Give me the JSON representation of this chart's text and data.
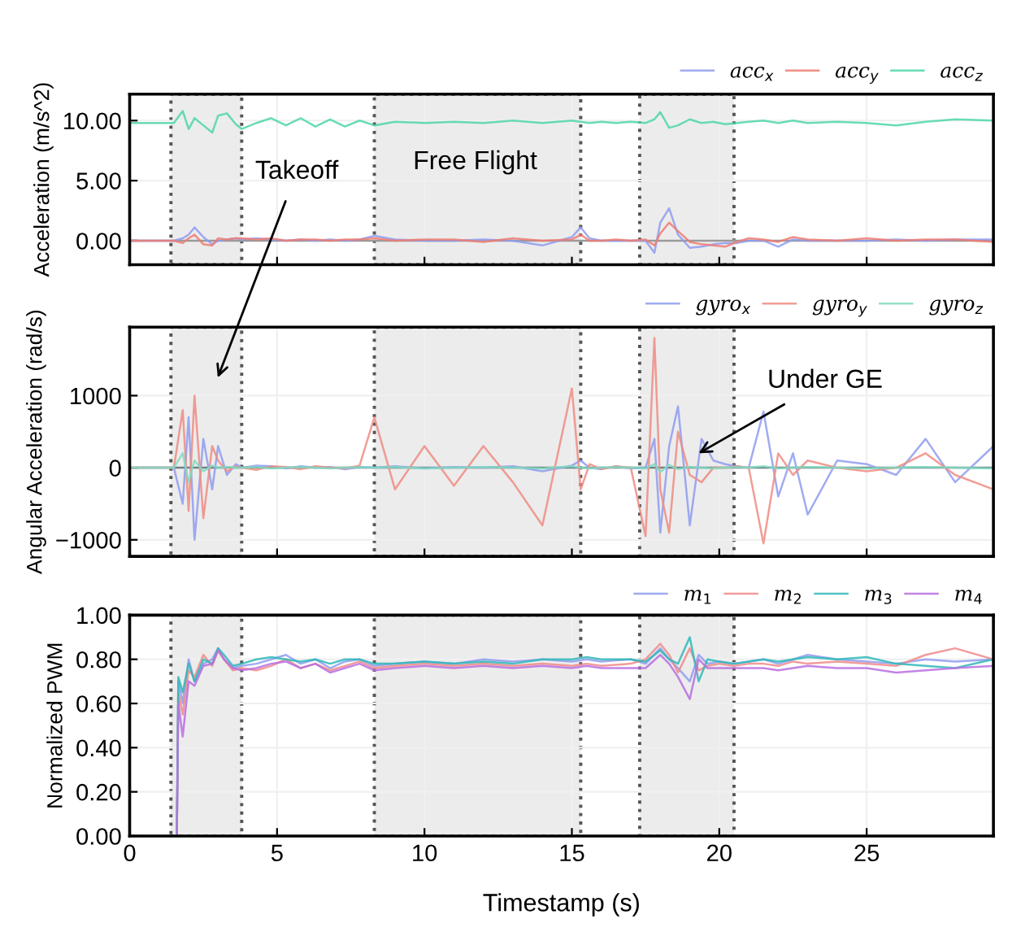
{
  "chart_data": [
    {
      "type": "line",
      "ylabel": "Acceleration (m/s^2)",
      "legend": "top right",
      "grid": true,
      "tick_labels": "y",
      "xlim": [
        0,
        29.3
      ],
      "xticks": [
        0,
        5,
        10,
        15,
        20,
        25
      ],
      "ylim": [
        -2,
        12.2
      ],
      "yticks": [
        {
          "value": 0,
          "label": "0.00"
        },
        {
          "value": 5,
          "label": "5.00"
        },
        {
          "value": 10,
          "label": "10.00"
        }
      ],
      "ref_lines": [
        {
          "axis": "y",
          "value": 0,
          "label": null,
          "color": "#9a9a9a"
        }
      ],
      "bands": [
        {
          "axis": "x",
          "from": 1.4,
          "to": 3.8,
          "label": null,
          "color": "#ececec"
        },
        {
          "axis": "x",
          "from": 8.3,
          "to": 15.3,
          "label": null,
          "color": "#ececec"
        },
        {
          "axis": "x",
          "from": 17.3,
          "to": 20.5,
          "label": null,
          "color": "#ececec"
        }
      ],
      "annotations": [
        "Free Flight"
      ],
      "x": [
        0,
        1.5,
        1.8,
        2.0,
        2.2,
        2.5,
        2.8,
        3.0,
        3.3,
        3.6,
        3.8,
        4.3,
        4.8,
        5.3,
        5.8,
        6.3,
        6.8,
        7.3,
        7.8,
        8.3,
        9,
        10,
        11,
        12,
        13,
        14,
        15,
        15.3,
        15.6,
        16,
        16.5,
        17,
        17.5,
        17.8,
        18,
        18.3,
        18.6,
        19,
        19.4,
        19.8,
        20.2,
        20.6,
        21,
        21.5,
        22,
        22.5,
        23,
        24,
        25,
        26,
        27,
        28,
        29.3
      ],
      "series": [
        {
          "name": "acc$_{x}$",
          "color": "#8f9cf0",
          "values": [
            0,
            0,
            0.2,
            0.5,
            1.1,
            0.3,
            -0.3,
            0.0,
            0.1,
            0.2,
            0.1,
            0.2,
            0.1,
            0.0,
            0.1,
            0.0,
            0.1,
            0.0,
            0.1,
            0.4,
            0.1,
            0.0,
            0.0,
            0.1,
            0.0,
            -0.4,
            0.3,
            1.1,
            0.2,
            0.0,
            0.0,
            0.0,
            0.0,
            -1.0,
            1.5,
            2.7,
            0.5,
            -0.6,
            -0.5,
            -0.3,
            -0.2,
            -0.2,
            0.0,
            0.0,
            -0.5,
            0.1,
            0.0,
            0.0,
            0.0,
            0.1,
            0.0,
            0.1,
            0.1
          ]
        },
        {
          "name": "acc$_{y}$",
          "color": "#ee7d72",
          "values": [
            0,
            0,
            -0.2,
            0.2,
            0.5,
            -0.3,
            -0.4,
            0.2,
            0.1,
            0.2,
            0.2,
            0.1,
            0.2,
            0.0,
            0.1,
            0.1,
            0.0,
            0.1,
            0.1,
            0.2,
            0.0,
            0.1,
            0.1,
            -0.1,
            0.2,
            0.0,
            0.1,
            0.5,
            0.0,
            0.0,
            0.1,
            0.0,
            0.1,
            -0.4,
            0.6,
            1.5,
            0.8,
            -0.1,
            -0.3,
            -0.4,
            -0.5,
            -0.1,
            0.2,
            0.1,
            -0.1,
            0.3,
            0.1,
            0.0,
            0.2,
            0.0,
            0.1,
            0.1,
            -0.1
          ]
        },
        {
          "name": "acc$_{z}$",
          "color": "#4fd6a8",
          "values": [
            9.8,
            9.8,
            10.8,
            9.3,
            10.2,
            9.6,
            9.0,
            10.4,
            10.6,
            9.7,
            9.3,
            9.8,
            10.2,
            9.6,
            10.2,
            9.5,
            10.1,
            9.5,
            10.0,
            9.6,
            9.9,
            9.8,
            9.9,
            9.8,
            10.0,
            9.8,
            10.0,
            9.9,
            9.8,
            9.9,
            9.8,
            9.9,
            9.8,
            10.1,
            10.7,
            9.4,
            9.6,
            10.1,
            9.8,
            9.9,
            9.7,
            9.8,
            9.9,
            10.0,
            9.8,
            10.0,
            9.8,
            9.9,
            9.8,
            9.6,
            9.9,
            10.1,
            10.0
          ]
        }
      ]
    },
    {
      "type": "line",
      "ylabel": "Angular Acceleration (rad/s)",
      "legend": "top right",
      "grid": true,
      "tick_labels": "y",
      "xlim": [
        0,
        29.3
      ],
      "xticks": [
        0,
        5,
        10,
        15,
        20,
        25
      ],
      "ylim": [
        -1230,
        1950
      ],
      "yticks": [
        {
          "value": -1000,
          "label": "−1000"
        },
        0,
        1000
      ],
      "ref_lines": [
        {
          "axis": "y",
          "value": 0,
          "label": null,
          "color": "#6f7f86"
        }
      ],
      "bands": [
        {
          "axis": "x",
          "from": 1.4,
          "to": 3.8,
          "label": null,
          "color": "#ececec"
        },
        {
          "axis": "x",
          "from": 8.3,
          "to": 15.3,
          "label": null,
          "color": "#ececec"
        },
        {
          "axis": "x",
          "from": 17.3,
          "to": 20.5,
          "label": null,
          "color": "#ececec"
        }
      ],
      "annotations": [
        "Takeoff",
        {
          "text": "Under GE",
          "x": 19.3,
          "y": 200
        }
      ],
      "x": [
        0,
        1.5,
        1.8,
        2.0,
        2.2,
        2.5,
        2.8,
        3.0,
        3.3,
        3.6,
        3.8,
        4.3,
        4.8,
        5.3,
        5.8,
        6.3,
        6.8,
        7.3,
        7.8,
        8.3,
        9,
        10,
        11,
        12,
        13,
        14,
        15,
        15.3,
        15.6,
        16,
        16.5,
        17,
        17.5,
        17.8,
        18,
        18.3,
        18.6,
        19,
        19.4,
        19.8,
        20.2,
        20.6,
        21,
        21.5,
        22,
        22.5,
        23,
        24,
        25,
        26,
        27,
        28,
        29.3
      ],
      "series": [
        {
          "name": "gyro$_{x}$",
          "color": "#8f9cf0",
          "values": [
            0,
            0,
            -500,
            700,
            -1000,
            400,
            -300,
            300,
            -100,
            50,
            0,
            30,
            20,
            -10,
            20,
            0,
            10,
            -20,
            10,
            0,
            20,
            -10,
            10,
            0,
            20,
            -50,
            30,
            100,
            0,
            -20,
            20,
            -10,
            0,
            400,
            -900,
            300,
            850,
            -800,
            400,
            100,
            50,
            20,
            0,
            780,
            -400,
            200,
            -650,
            100,
            50,
            -100,
            400,
            -200,
            300
          ]
        },
        {
          "name": "gyro$_{y}$",
          "color": "#ee8c82",
          "values": [
            0,
            0,
            800,
            -600,
            1000,
            -700,
            300,
            100,
            -50,
            20,
            0,
            -30,
            20,
            10,
            -20,
            20,
            0,
            -10,
            30,
            700,
            -300,
            300,
            -250,
            300,
            -200,
            -800,
            1100,
            -300,
            50,
            -20,
            20,
            0,
            -950,
            1800,
            -300,
            -900,
            500,
            -100,
            -200,
            0,
            0,
            20,
            0,
            -1050,
            200,
            -100,
            100,
            0,
            -50,
            0,
            200,
            -100,
            -300
          ]
        },
        {
          "name": "gyro$_{z}$",
          "color": "#7fdcc0",
          "values": [
            0,
            0,
            200,
            -200,
            100,
            -50,
            30,
            0,
            10,
            0,
            0,
            10,
            -10,
            0,
            10,
            0,
            -10,
            0,
            10,
            0,
            10,
            -10,
            0,
            10,
            0,
            -10,
            20,
            0,
            -10,
            0,
            10,
            0,
            -10,
            50,
            -60,
            40,
            -20,
            10,
            0,
            -10,
            0,
            10,
            0,
            20,
            -10,
            0,
            10,
            0,
            -10,
            0,
            10,
            0,
            -10
          ]
        }
      ]
    },
    {
      "type": "line",
      "ylabel": "Normalized PWM",
      "xlabel": "Timestamp (s)",
      "legend": "top right",
      "grid": true,
      "xlim": [
        0,
        29.3
      ],
      "xticks": [
        0,
        5,
        10,
        15,
        20,
        25
      ],
      "ylim": [
        0,
        1
      ],
      "yticks": [
        {
          "value": 0,
          "label": "0.00"
        },
        {
          "value": 0.2,
          "label": "0.20"
        },
        {
          "value": 0.4,
          "label": "0.40"
        },
        {
          "value": 0.6,
          "label": "0.60"
        },
        {
          "value": 0.8,
          "label": "0.80"
        },
        {
          "value": 1,
          "label": "1.00"
        }
      ],
      "bands": [
        {
          "axis": "x",
          "from": 1.4,
          "to": 3.8,
          "label": null,
          "color": "#ececec"
        },
        {
          "axis": "x",
          "from": 8.3,
          "to": 15.3,
          "label": null,
          "color": "#ececec"
        },
        {
          "axis": "x",
          "from": 17.3,
          "to": 20.5,
          "label": null,
          "color": "#ececec"
        }
      ],
      "x": [
        1.6,
        1.65,
        1.8,
        2.0,
        2.2,
        2.5,
        2.8,
        3.0,
        3.2,
        3.5,
        3.8,
        4.3,
        4.8,
        5.3,
        5.8,
        6.3,
        6.8,
        7.3,
        7.8,
        8.3,
        9,
        10,
        11,
        12,
        13,
        14,
        15,
        15.5,
        16,
        17,
        17.5,
        18,
        18.3,
        18.6,
        19,
        19.3,
        19.6,
        20,
        20.5,
        21,
        21.5,
        22,
        22.5,
        23,
        24,
        25,
        26,
        27,
        28,
        29.3
      ],
      "series": [
        {
          "name": "m$_{1}$",
          "color": "#8f9cf0",
          "values": [
            0.0,
            0.7,
            0.6,
            0.8,
            0.7,
            0.78,
            0.8,
            0.85,
            0.8,
            0.76,
            0.77,
            0.78,
            0.8,
            0.82,
            0.78,
            0.8,
            0.76,
            0.79,
            0.8,
            0.77,
            0.78,
            0.79,
            0.78,
            0.8,
            0.79,
            0.8,
            0.79,
            0.8,
            0.79,
            0.8,
            0.78,
            0.85,
            0.8,
            0.76,
            0.7,
            0.82,
            0.78,
            0.79,
            0.78,
            0.79,
            0.8,
            0.78,
            0.8,
            0.82,
            0.8,
            0.79,
            0.78,
            0.8,
            0.79,
            0.8
          ]
        },
        {
          "name": "m$_{2}$",
          "color": "#f08a8a",
          "values": [
            0.0,
            0.65,
            0.55,
            0.75,
            0.72,
            0.82,
            0.77,
            0.84,
            0.8,
            0.75,
            0.76,
            0.75,
            0.77,
            0.8,
            0.76,
            0.78,
            0.75,
            0.77,
            0.79,
            0.76,
            0.77,
            0.78,
            0.77,
            0.78,
            0.77,
            0.78,
            0.77,
            0.78,
            0.77,
            0.78,
            0.8,
            0.87,
            0.82,
            0.74,
            0.85,
            0.75,
            0.77,
            0.78,
            0.77,
            0.78,
            0.78,
            0.77,
            0.79,
            0.78,
            0.79,
            0.78,
            0.77,
            0.82,
            0.85,
            0.8
          ]
        },
        {
          "name": "m$_{3}$",
          "color": "#2fb8b8",
          "values": [
            0.0,
            0.72,
            0.65,
            0.78,
            0.7,
            0.8,
            0.78,
            0.85,
            0.82,
            0.77,
            0.78,
            0.8,
            0.81,
            0.8,
            0.79,
            0.8,
            0.78,
            0.8,
            0.8,
            0.78,
            0.78,
            0.79,
            0.78,
            0.79,
            0.78,
            0.8,
            0.8,
            0.81,
            0.8,
            0.8,
            0.79,
            0.84,
            0.8,
            0.78,
            0.9,
            0.7,
            0.8,
            0.79,
            0.78,
            0.79,
            0.8,
            0.79,
            0.8,
            0.81,
            0.8,
            0.81,
            0.78,
            0.77,
            0.76,
            0.8
          ]
        },
        {
          "name": "m$_{4}$",
          "color": "#b86ee0",
          "values": [
            0.0,
            0.6,
            0.45,
            0.7,
            0.68,
            0.77,
            0.78,
            0.84,
            0.8,
            0.76,
            0.75,
            0.76,
            0.78,
            0.79,
            0.76,
            0.78,
            0.74,
            0.76,
            0.78,
            0.75,
            0.76,
            0.77,
            0.76,
            0.77,
            0.76,
            0.77,
            0.76,
            0.77,
            0.76,
            0.76,
            0.76,
            0.82,
            0.78,
            0.72,
            0.62,
            0.8,
            0.76,
            0.76,
            0.76,
            0.76,
            0.76,
            0.75,
            0.76,
            0.77,
            0.76,
            0.76,
            0.74,
            0.75,
            0.76,
            0.77
          ]
        }
      ]
    }
  ]
}
